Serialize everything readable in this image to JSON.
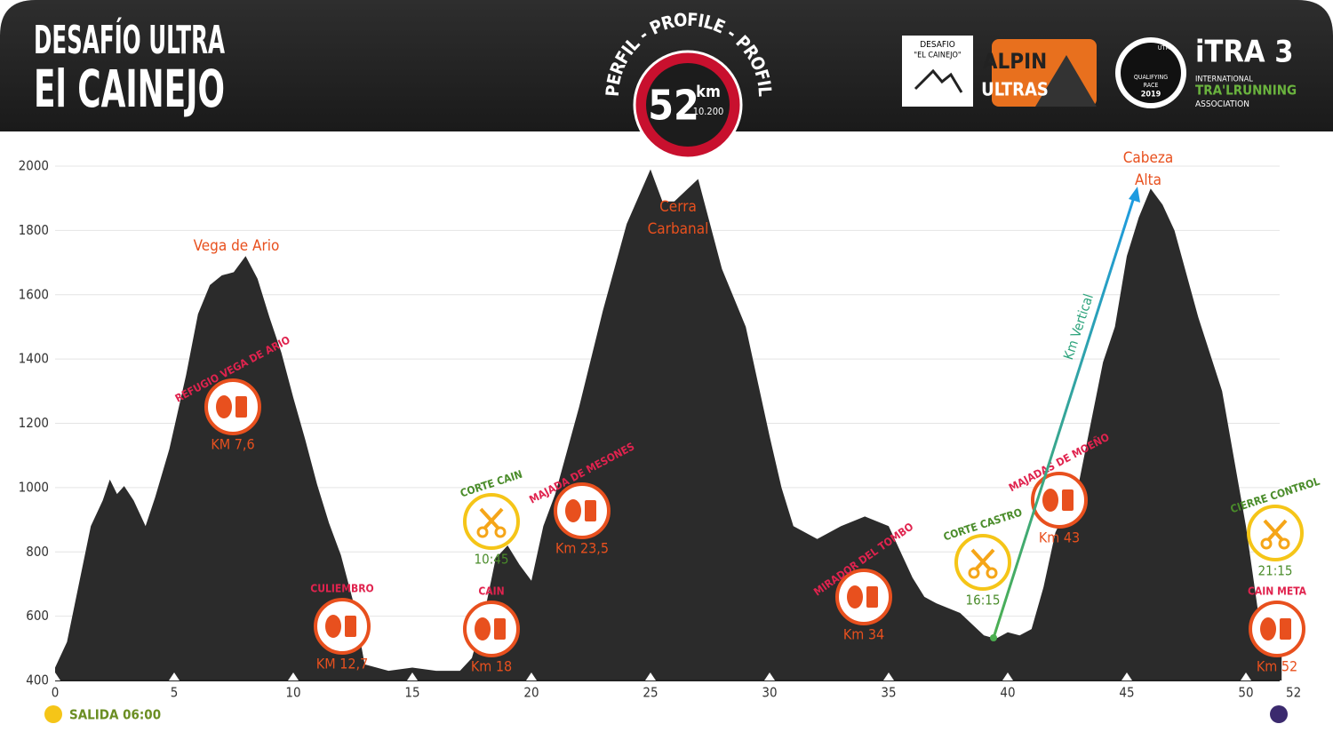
{
  "header": {
    "title_line1": "DESAFÍO ULTRA",
    "title_line2": "El CAINEJO",
    "profile_banner": "PERFIL - PROFILE - PROFIL",
    "distance": "52",
    "distance_unit": "km",
    "elevation_gain": "10.200",
    "logo1_line1": "DESAFIO",
    "logo1_line2": "\"EL CAINEJO\"",
    "logo2_line1": "ALPIN",
    "logo2_line2": "ULTRAS",
    "logo3_top": "UTMB",
    "logo3_line1": "QUALIFYING",
    "logo3_line2": "RACE",
    "logo3_line3": "2019",
    "itra_name": "iTRA 3",
    "itra_line1": "INTERNATIONAL",
    "itra_line2": "TRA'LRUNNING",
    "itra_line3": "ASSOCIATION"
  },
  "chart_data": {
    "type": "area",
    "color": "#2b2b2b",
    "x": [
      0,
      0.5,
      1,
      1.5,
      2,
      2.3,
      2.6,
      2.9,
      3.3,
      3.8,
      4.2,
      4.8,
      5.5,
      6,
      6.5,
      7,
      7.5,
      8,
      8.5,
      9,
      9.5,
      10,
      10.5,
      11,
      11.5,
      12,
      12.5,
      13,
      14,
      15,
      16,
      17,
      17.5,
      18,
      18.5,
      19,
      19.5,
      20,
      20.5,
      21,
      22,
      23,
      24,
      25,
      25.5,
      26,
      27,
      28,
      29,
      30,
      30.5,
      31,
      32,
      33,
      34,
      35,
      35.5,
      36,
      36.5,
      37,
      38,
      39,
      39.5,
      40,
      40.5,
      41,
      41.5,
      42,
      43,
      44,
      44.5,
      45,
      45.5,
      46,
      46.5,
      47,
      48,
      49,
      50,
      50.5,
      51,
      51.5
    ],
    "values": [
      440,
      520,
      700,
      880,
      960,
      1025,
      980,
      1005,
      960,
      880,
      970,
      1120,
      1350,
      1540,
      1630,
      1660,
      1670,
      1720,
      1650,
      1530,
      1420,
      1280,
      1150,
      1010,
      890,
      790,
      650,
      450,
      430,
      440,
      430,
      430,
      470,
      600,
      780,
      820,
      760,
      710,
      880,
      980,
      1250,
      1550,
      1820,
      1990,
      1890,
      1890,
      1960,
      1680,
      1500,
      1160,
      1000,
      880,
      840,
      880,
      910,
      880,
      800,
      720,
      660,
      640,
      610,
      540,
      530,
      550,
      540,
      560,
      690,
      860,
      1020,
      1390,
      1500,
      1720,
      1840,
      1930,
      1880,
      1800,
      1530,
      1300,
      880,
      620,
      520,
      480
    ],
    "xlim": [
      0,
      51.5
    ],
    "ylim": [
      400,
      2000
    ],
    "xticks": [
      0,
      5,
      10,
      15,
      20,
      25,
      30,
      35,
      40,
      45,
      50,
      52
    ],
    "yticks": [
      400,
      600,
      800,
      1000,
      1200,
      1400,
      1600,
      1800,
      2000
    ],
    "grid": true,
    "peaks": [
      "Vega de Ario",
      "Cerra Carbanal",
      "Cabeza Alta"
    ],
    "aid_stations": [
      {
        "name": "REFUGIO VEGA DE ARIO",
        "km": "KM 7,6"
      },
      {
        "name": "CULIEMBRO",
        "km": "KM 12,7"
      },
      {
        "name": "CAIN",
        "km": "Km 18"
      },
      {
        "name": "MAJADA DE MESONES",
        "km": "Km 23,5"
      },
      {
        "name": "MIRADOR DEL TOMBO",
        "km": "Km 34"
      },
      {
        "name": "MAJADAS DE MOEÑO",
        "km": "Km 43"
      },
      {
        "name": "CAIN META",
        "km": "Km 52"
      }
    ],
    "cutoffs": [
      {
        "name": "CORTE CAIN",
        "time": "10:45"
      },
      {
        "name": "CORTE CASTRO",
        "time": "16:15"
      },
      {
        "name": "CIERRE CONTROL",
        "time": "21:15"
      }
    ],
    "vertical_label": "Km Vertical",
    "start_label": "SALIDA 06:00"
  }
}
